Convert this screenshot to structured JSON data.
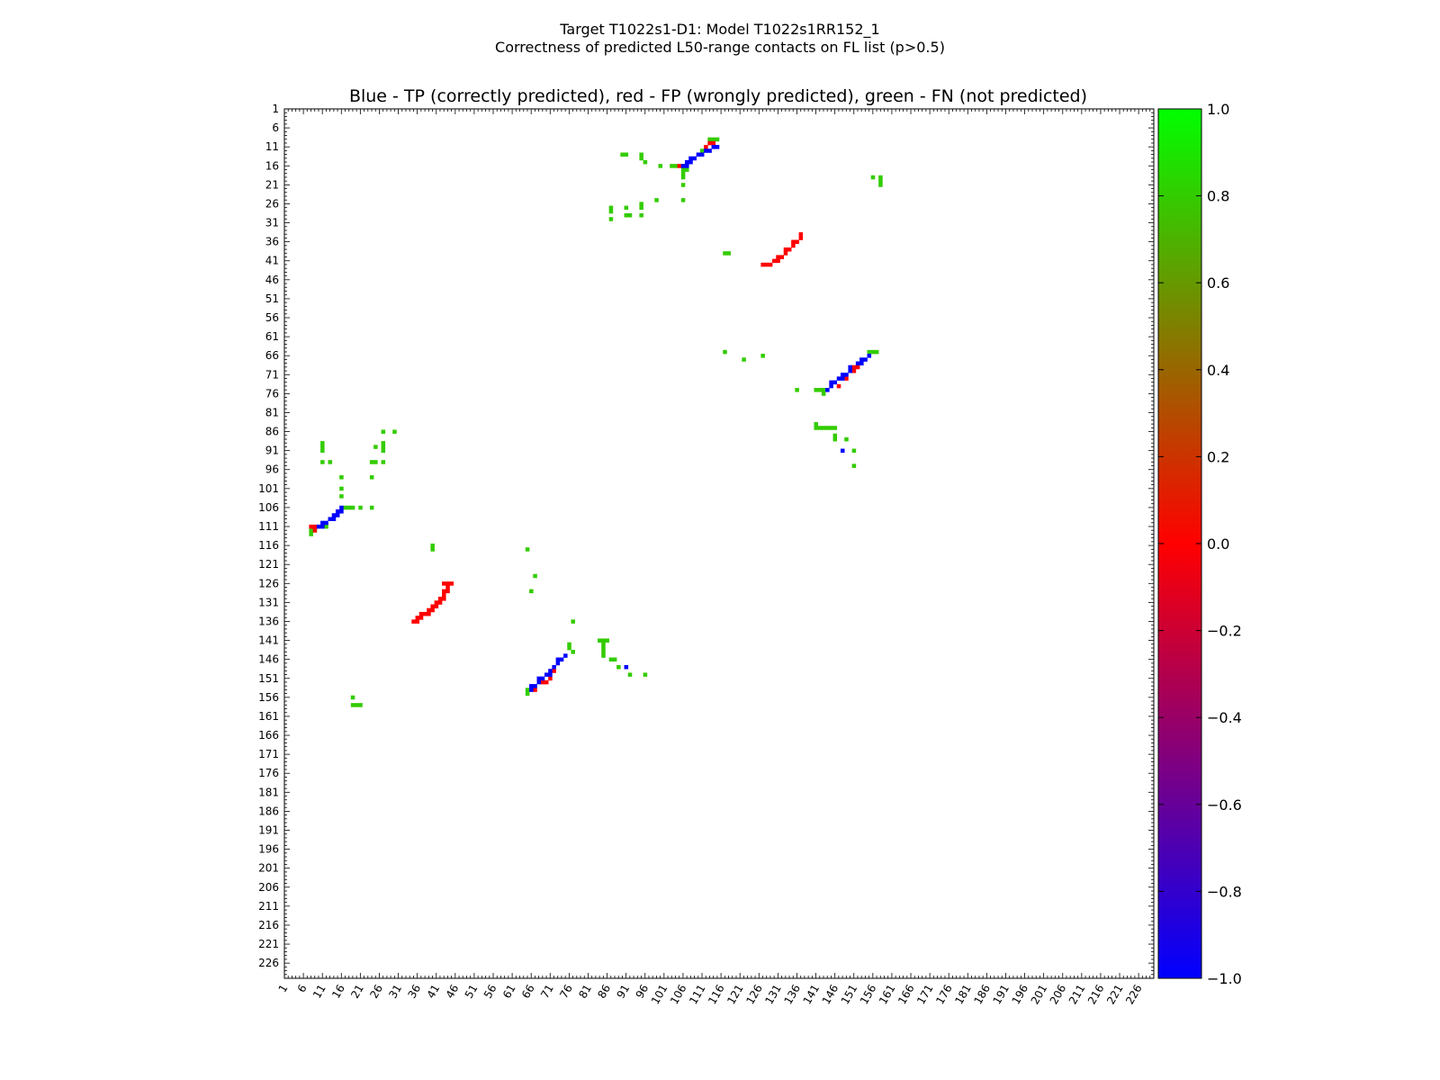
{
  "figure": {
    "suptitle_line1": "Target T1022s1-D1: Model T1022s1RR152_1",
    "suptitle_line2": "Correctness of predicted L50-range contacts on FL list (p>0.5)"
  },
  "chart_data": {
    "type": "heatmap",
    "title": "Blue - TP (correctly predicted), red - FP (wrongly predicted), green - FN (not predicted)",
    "xlabel": "",
    "ylabel": "",
    "x_range": [
      1,
      230
    ],
    "y_range": [
      1,
      230
    ],
    "y_inverted": true,
    "x_tick_labels": [
      "1",
      "6",
      "11",
      "16",
      "21",
      "26",
      "31",
      "36",
      "41",
      "46",
      "51",
      "56",
      "61",
      "66",
      "71",
      "76",
      "81",
      "86",
      "91",
      "96",
      "101",
      "106",
      "111",
      "116",
      "121",
      "126",
      "131",
      "136",
      "141",
      "146",
      "151",
      "156",
      "161",
      "166",
      "171",
      "176",
      "181",
      "186",
      "191",
      "196",
      "201",
      "206",
      "211",
      "216",
      "221",
      "226"
    ],
    "y_tick_labels": [
      "1",
      "6",
      "11",
      "16",
      "21",
      "26",
      "31",
      "36",
      "41",
      "46",
      "51",
      "56",
      "61",
      "66",
      "71",
      "76",
      "81",
      "86",
      "91",
      "96",
      "101",
      "106",
      "111",
      "116",
      "121",
      "126",
      "131",
      "136",
      "141",
      "146",
      "151",
      "156",
      "161",
      "166",
      "171",
      "176",
      "181",
      "186",
      "191",
      "196",
      "201",
      "206",
      "211",
      "216",
      "221",
      "226"
    ],
    "colorbar": {
      "min": -1.0,
      "max": 1.0,
      "tick_labels": [
        "1.0",
        "0.8",
        "0.6",
        "0.4",
        "0.2",
        "0.0",
        "−0.2",
        "−0.4",
        "−0.6",
        "−0.8",
        "−1.0"
      ],
      "colors": {
        "tp": "#0000ff",
        "fp": "#ff0000",
        "fn": "#33cc00"
      }
    },
    "cells": {
      "tp": [
        [
          108,
          14
        ],
        [
          109,
          14
        ],
        [
          110,
          13
        ],
        [
          111,
          13
        ],
        [
          112,
          12
        ],
        [
          113,
          12
        ],
        [
          114,
          11
        ],
        [
          115,
          11
        ],
        [
          107,
          15
        ],
        [
          106,
          16
        ],
        [
          107,
          16
        ],
        [
          108,
          15
        ],
        [
          10,
          111
        ],
        [
          11,
          111
        ],
        [
          11,
          110
        ],
        [
          12,
          110
        ],
        [
          13,
          109
        ],
        [
          14,
          109
        ],
        [
          14,
          108
        ],
        [
          15,
          108
        ],
        [
          16,
          107
        ],
        [
          16,
          106
        ],
        [
          15,
          107
        ],
        [
          145,
          73
        ],
        [
          145,
          74
        ],
        [
          146,
          73
        ],
        [
          147,
          72
        ],
        [
          148,
          72
        ],
        [
          148,
          71
        ],
        [
          149,
          71
        ],
        [
          150,
          70
        ],
        [
          150,
          69
        ],
        [
          152,
          68
        ],
        [
          153,
          68
        ],
        [
          153,
          67
        ],
        [
          154,
          67
        ],
        [
          155,
          66
        ],
        [
          144,
          75
        ],
        [
          66,
          154
        ],
        [
          66,
          153
        ],
        [
          67,
          153
        ],
        [
          68,
          152
        ],
        [
          68,
          151
        ],
        [
          69,
          151
        ],
        [
          70,
          150
        ],
        [
          71,
          150
        ],
        [
          71,
          149
        ],
        [
          72,
          148
        ],
        [
          73,
          147
        ],
        [
          73,
          146
        ],
        [
          74,
          146
        ],
        [
          75,
          145
        ],
        [
          148,
          91
        ],
        [
          91,
          148
        ]
      ],
      "fp": [
        [
          112,
          11
        ],
        [
          113,
          10
        ],
        [
          114,
          10
        ],
        [
          105,
          16
        ],
        [
          127,
          42
        ],
        [
          128,
          42
        ],
        [
          129,
          42
        ],
        [
          130,
          41
        ],
        [
          131,
          41
        ],
        [
          131,
          40
        ],
        [
          132,
          40
        ],
        [
          133,
          39
        ],
        [
          133,
          38
        ],
        [
          134,
          38
        ],
        [
          135,
          37
        ],
        [
          135,
          36
        ],
        [
          136,
          36
        ],
        [
          137,
          35
        ],
        [
          137,
          34
        ],
        [
          9,
          112
        ],
        [
          9,
          111
        ],
        [
          8,
          111
        ],
        [
          35,
          136
        ],
        [
          36,
          136
        ],
        [
          36,
          135
        ],
        [
          37,
          135
        ],
        [
          37,
          134
        ],
        [
          38,
          134
        ],
        [
          39,
          134
        ],
        [
          39,
          133
        ],
        [
          40,
          133
        ],
        [
          40,
          132
        ],
        [
          41,
          132
        ],
        [
          41,
          131
        ],
        [
          42,
          131
        ],
        [
          42,
          130
        ],
        [
          43,
          130
        ],
        [
          43,
          129
        ],
        [
          43,
          128
        ],
        [
          44,
          128
        ],
        [
          44,
          127
        ],
        [
          44,
          126
        ],
        [
          43,
          126
        ],
        [
          45,
          126
        ],
        [
          151,
          70
        ],
        [
          151,
          69
        ],
        [
          152,
          69
        ],
        [
          149,
          72
        ],
        [
          147,
          74
        ],
        [
          69,
          152
        ],
        [
          70,
          152
        ],
        [
          71,
          151
        ],
        [
          72,
          149
        ],
        [
          67,
          154
        ]
      ],
      "fn": [
        [
          113,
          9
        ],
        [
          114,
          9
        ],
        [
          115,
          9
        ],
        [
          111,
          12
        ],
        [
          106,
          17
        ],
        [
          107,
          17
        ],
        [
          106,
          18
        ],
        [
          106,
          19
        ],
        [
          106,
          21
        ],
        [
          90,
          13
        ],
        [
          91,
          13
        ],
        [
          95,
          13
        ],
        [
          95,
          14
        ],
        [
          96,
          15
        ],
        [
          100,
          16
        ],
        [
          103,
          16
        ],
        [
          104,
          16
        ],
        [
          106,
          16
        ],
        [
          107,
          16
        ],
        [
          87,
          27
        ],
        [
          87,
          28
        ],
        [
          91,
          27
        ],
        [
          91,
          29
        ],
        [
          92,
          29
        ],
        [
          95,
          26
        ],
        [
          95,
          27
        ],
        [
          95,
          29
        ],
        [
          99,
          25
        ],
        [
          106,
          25
        ],
        [
          87,
          30
        ],
        [
          156,
          19
        ],
        [
          158,
          19
        ],
        [
          158,
          20
        ],
        [
          158,
          21
        ],
        [
          117,
          39
        ],
        [
          118,
          39
        ],
        [
          117,
          65
        ],
        [
          122,
          67
        ],
        [
          127,
          66
        ],
        [
          136,
          75
        ],
        [
          141,
          75
        ],
        [
          142,
          75
        ],
        [
          143,
          75
        ],
        [
          143,
          76
        ],
        [
          155,
          65
        ],
        [
          156,
          65
        ],
        [
          157,
          65
        ],
        [
          141,
          84
        ],
        [
          141,
          85
        ],
        [
          142,
          85
        ],
        [
          143,
          85
        ],
        [
          144,
          85
        ],
        [
          145,
          85
        ],
        [
          146,
          85
        ],
        [
          146,
          87
        ],
        [
          146,
          88
        ],
        [
          149,
          88
        ],
        [
          151,
          91
        ],
        [
          151,
          95
        ],
        [
          8,
          113
        ],
        [
          8,
          112
        ],
        [
          9,
          112
        ],
        [
          12,
          111
        ],
        [
          11,
          89
        ],
        [
          11,
          90
        ],
        [
          11,
          91
        ],
        [
          11,
          94
        ],
        [
          13,
          94
        ],
        [
          16,
          98
        ],
        [
          16,
          101
        ],
        [
          16,
          103
        ],
        [
          17,
          106
        ],
        [
          18,
          106
        ],
        [
          19,
          106
        ],
        [
          21,
          106
        ],
        [
          24,
          106
        ],
        [
          24,
          94
        ],
        [
          25,
          94
        ],
        [
          25,
          90
        ],
        [
          27,
          89
        ],
        [
          27,
          90
        ],
        [
          27,
          91
        ],
        [
          27,
          94
        ],
        [
          27,
          86
        ],
        [
          30,
          86
        ],
        [
          24,
          98
        ],
        [
          40,
          116
        ],
        [
          40,
          117
        ],
        [
          65,
          117
        ],
        [
          67,
          124
        ],
        [
          66,
          128
        ],
        [
          77,
          136
        ],
        [
          76,
          142
        ],
        [
          76,
          143
        ],
        [
          77,
          144
        ],
        [
          84,
          141
        ],
        [
          85,
          141
        ],
        [
          86,
          141
        ],
        [
          85,
          142
        ],
        [
          85,
          143
        ],
        [
          85,
          144
        ],
        [
          85,
          145
        ],
        [
          87,
          146
        ],
        [
          88,
          146
        ],
        [
          89,
          148
        ],
        [
          92,
          150
        ],
        [
          96,
          150
        ],
        [
          65,
          154
        ],
        [
          65,
          155
        ],
        [
          19,
          156
        ],
        [
          19,
          158
        ],
        [
          20,
          158
        ],
        [
          21,
          158
        ]
      ]
    }
  }
}
